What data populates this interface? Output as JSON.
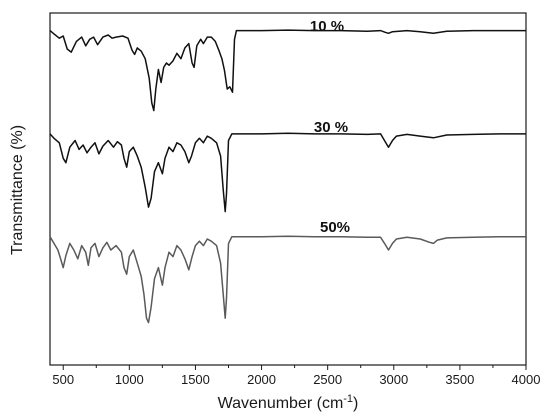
{
  "chart_data": {
    "type": "line",
    "title": "",
    "xlabel": "Wavenumber (cm",
    "xlabel_sup": "-1",
    "xlabel_close": ")",
    "ylabel": "Transmittance (%)",
    "xlim": [
      400,
      4000
    ],
    "xticks": [
      "500",
      "1000",
      "1500",
      "2000",
      "2500",
      "3000",
      "3500",
      "4000"
    ],
    "grid": false,
    "legend": "none",
    "series": [
      {
        "name": "10 %",
        "color": "#111111",
        "baseline": 0.92,
        "points": [
          [
            400,
            0.92
          ],
          [
            430,
            0.89
          ],
          [
            470,
            0.85
          ],
          [
            500,
            0.87
          ],
          [
            530,
            0.75
          ],
          [
            560,
            0.72
          ],
          [
            600,
            0.82
          ],
          [
            640,
            0.86
          ],
          [
            670,
            0.78
          ],
          [
            700,
            0.84
          ],
          [
            730,
            0.86
          ],
          [
            760,
            0.79
          ],
          [
            800,
            0.86
          ],
          [
            840,
            0.88
          ],
          [
            870,
            0.85
          ],
          [
            900,
            0.86
          ],
          [
            950,
            0.87
          ],
          [
            990,
            0.85
          ],
          [
            1020,
            0.74
          ],
          [
            1040,
            0.7
          ],
          [
            1060,
            0.76
          ],
          [
            1090,
            0.73
          ],
          [
            1120,
            0.66
          ],
          [
            1150,
            0.48
          ],
          [
            1170,
            0.25
          ],
          [
            1185,
            0.18
          ],
          [
            1200,
            0.38
          ],
          [
            1220,
            0.56
          ],
          [
            1240,
            0.44
          ],
          [
            1260,
            0.58
          ],
          [
            1280,
            0.62
          ],
          [
            1300,
            0.6
          ],
          [
            1330,
            0.64
          ],
          [
            1360,
            0.71
          ],
          [
            1390,
            0.66
          ],
          [
            1420,
            0.76
          ],
          [
            1450,
            0.8
          ],
          [
            1475,
            0.62
          ],
          [
            1490,
            0.58
          ],
          [
            1510,
            0.78
          ],
          [
            1540,
            0.84
          ],
          [
            1560,
            0.8
          ],
          [
            1590,
            0.86
          ],
          [
            1620,
            0.86
          ],
          [
            1650,
            0.82
          ],
          [
            1680,
            0.73
          ],
          [
            1700,
            0.66
          ],
          [
            1720,
            0.55
          ],
          [
            1740,
            0.38
          ],
          [
            1760,
            0.4
          ],
          [
            1780,
            0.35
          ],
          [
            1795,
            0.84
          ],
          [
            1810,
            0.92
          ],
          [
            2000,
            0.92
          ],
          [
            2200,
            0.925
          ],
          [
            2400,
            0.92
          ],
          [
            2600,
            0.92
          ],
          [
            2800,
            0.915
          ],
          [
            2900,
            0.92
          ],
          [
            2935,
            0.905
          ],
          [
            2960,
            0.895
          ],
          [
            2990,
            0.91
          ],
          [
            3100,
            0.92
          ],
          [
            3200,
            0.91
          ],
          [
            3300,
            0.895
          ],
          [
            3400,
            0.915
          ],
          [
            3600,
            0.92
          ],
          [
            3800,
            0.92
          ],
          [
            4000,
            0.92
          ]
        ]
      },
      {
        "name": "30 %",
        "color": "#111111",
        "baseline": 0.92,
        "points": [
          [
            400,
            0.92
          ],
          [
            430,
            0.88
          ],
          [
            470,
            0.84
          ],
          [
            500,
            0.7
          ],
          [
            520,
            0.66
          ],
          [
            550,
            0.8
          ],
          [
            590,
            0.86
          ],
          [
            620,
            0.78
          ],
          [
            650,
            0.82
          ],
          [
            680,
            0.75
          ],
          [
            710,
            0.8
          ],
          [
            740,
            0.84
          ],
          [
            770,
            0.74
          ],
          [
            800,
            0.81
          ],
          [
            840,
            0.86
          ],
          [
            880,
            0.8
          ],
          [
            910,
            0.85
          ],
          [
            940,
            0.82
          ],
          [
            960,
            0.7
          ],
          [
            980,
            0.62
          ],
          [
            1000,
            0.76
          ],
          [
            1030,
            0.8
          ],
          [
            1060,
            0.72
          ],
          [
            1090,
            0.62
          ],
          [
            1120,
            0.44
          ],
          [
            1145,
            0.26
          ],
          [
            1165,
            0.34
          ],
          [
            1190,
            0.58
          ],
          [
            1220,
            0.66
          ],
          [
            1250,
            0.56
          ],
          [
            1270,
            0.7
          ],
          [
            1300,
            0.8
          ],
          [
            1330,
            0.76
          ],
          [
            1360,
            0.84
          ],
          [
            1390,
            0.82
          ],
          [
            1420,
            0.76
          ],
          [
            1450,
            0.66
          ],
          [
            1470,
            0.72
          ],
          [
            1500,
            0.84
          ],
          [
            1530,
            0.88
          ],
          [
            1560,
            0.84
          ],
          [
            1590,
            0.9
          ],
          [
            1620,
            0.88
          ],
          [
            1660,
            0.84
          ],
          [
            1690,
            0.72
          ],
          [
            1710,
            0.42
          ],
          [
            1725,
            0.22
          ],
          [
            1735,
            0.38
          ],
          [
            1750,
            0.86
          ],
          [
            1775,
            0.92
          ],
          [
            2000,
            0.92
          ],
          [
            2200,
            0.925
          ],
          [
            2400,
            0.92
          ],
          [
            2600,
            0.92
          ],
          [
            2800,
            0.915
          ],
          [
            2900,
            0.92
          ],
          [
            2935,
            0.85
          ],
          [
            2960,
            0.8
          ],
          [
            2990,
            0.86
          ],
          [
            3020,
            0.9
          ],
          [
            3100,
            0.915
          ],
          [
            3200,
            0.9
          ],
          [
            3300,
            0.885
          ],
          [
            3400,
            0.91
          ],
          [
            3600,
            0.915
          ],
          [
            3800,
            0.92
          ],
          [
            4000,
            0.92
          ]
        ]
      },
      {
        "name": "50%",
        "color": "#5a5a5a",
        "baseline": 0.92,
        "points": [
          [
            400,
            0.92
          ],
          [
            430,
            0.86
          ],
          [
            460,
            0.8
          ],
          [
            480,
            0.72
          ],
          [
            500,
            0.64
          ],
          [
            520,
            0.75
          ],
          [
            550,
            0.86
          ],
          [
            580,
            0.8
          ],
          [
            610,
            0.72
          ],
          [
            640,
            0.84
          ],
          [
            670,
            0.78
          ],
          [
            690,
            0.66
          ],
          [
            710,
            0.82
          ],
          [
            740,
            0.86
          ],
          [
            770,
            0.74
          ],
          [
            800,
            0.82
          ],
          [
            830,
            0.87
          ],
          [
            860,
            0.8
          ],
          [
            900,
            0.84
          ],
          [
            940,
            0.78
          ],
          [
            960,
            0.64
          ],
          [
            980,
            0.58
          ],
          [
            1000,
            0.74
          ],
          [
            1030,
            0.8
          ],
          [
            1060,
            0.68
          ],
          [
            1090,
            0.56
          ],
          [
            1110,
            0.4
          ],
          [
            1130,
            0.18
          ],
          [
            1145,
            0.14
          ],
          [
            1165,
            0.28
          ],
          [
            1190,
            0.54
          ],
          [
            1220,
            0.64
          ],
          [
            1250,
            0.48
          ],
          [
            1270,
            0.64
          ],
          [
            1300,
            0.78
          ],
          [
            1330,
            0.74
          ],
          [
            1360,
            0.84
          ],
          [
            1390,
            0.8
          ],
          [
            1420,
            0.72
          ],
          [
            1450,
            0.62
          ],
          [
            1475,
            0.74
          ],
          [
            1500,
            0.84
          ],
          [
            1530,
            0.88
          ],
          [
            1560,
            0.84
          ],
          [
            1590,
            0.9
          ],
          [
            1620,
            0.88
          ],
          [
            1660,
            0.84
          ],
          [
            1690,
            0.68
          ],
          [
            1710,
            0.4
          ],
          [
            1725,
            0.18
          ],
          [
            1735,
            0.36
          ],
          [
            1750,
            0.86
          ],
          [
            1775,
            0.92
          ],
          [
            2000,
            0.92
          ],
          [
            2200,
            0.925
          ],
          [
            2400,
            0.92
          ],
          [
            2600,
            0.92
          ],
          [
            2800,
            0.915
          ],
          [
            2900,
            0.915
          ],
          [
            2935,
            0.85
          ],
          [
            2960,
            0.8
          ],
          [
            2990,
            0.86
          ],
          [
            3020,
            0.9
          ],
          [
            3100,
            0.915
          ],
          [
            3200,
            0.9
          ],
          [
            3270,
            0.87
          ],
          [
            3300,
            0.86
          ],
          [
            3330,
            0.89
          ],
          [
            3400,
            0.91
          ],
          [
            3600,
            0.915
          ],
          [
            3800,
            0.92
          ],
          [
            4000,
            0.92
          ]
        ]
      }
    ]
  }
}
